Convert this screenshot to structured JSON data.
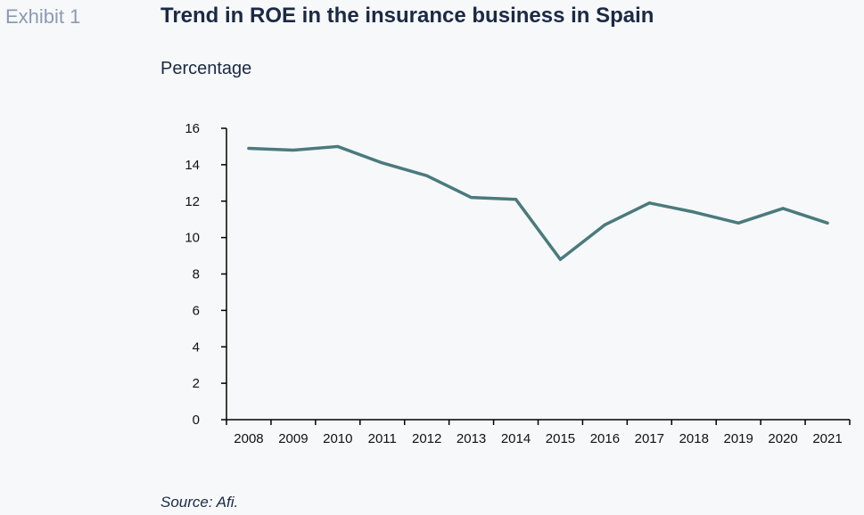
{
  "header": {
    "exhibit": "Exhibit 1",
    "title": "Trend in ROE in the insurance business in Spain",
    "unit": "Percentage"
  },
  "footer": {
    "source": "Source: Afi."
  },
  "colors": {
    "line": "#4a7a7c",
    "axis": "#000000",
    "text": "#1b2a44"
  },
  "chart_data": {
    "type": "line",
    "title": "Trend in ROE in the insurance business in Spain",
    "ylabel": "Percentage",
    "xlabel": "",
    "ylim": [
      0,
      16
    ],
    "yticks": [
      0,
      2,
      4,
      6,
      8,
      10,
      12,
      14,
      16
    ],
    "grid": false,
    "categories": [
      "2008",
      "2009",
      "2010",
      "2011",
      "2012",
      "2013",
      "2014",
      "2015",
      "2016",
      "2017",
      "2018",
      "2019",
      "2020",
      "2021"
    ],
    "series": [
      {
        "values": [
          14.9,
          14.8,
          15.0,
          14.1,
          13.4,
          12.2,
          12.1,
          8.8,
          10.7,
          11.9,
          11.4,
          10.8,
          11.6,
          10.8
        ]
      }
    ]
  }
}
